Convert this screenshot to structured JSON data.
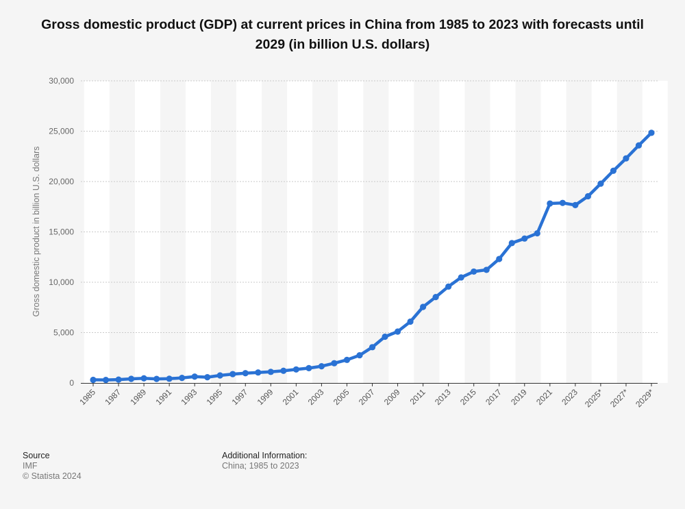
{
  "chart_data": {
    "type": "line",
    "title": "Gross domestic product (GDP) at current prices in China from 1985 to 2023 with forecasts until 2029 (in billion U.S. dollars)",
    "ylabel": "Gross domestic product in billion U.S. dollars",
    "xlabel": "",
    "ylim": [
      0,
      30000
    ],
    "yticks": [
      "0",
      "5,000",
      "10,000",
      "15,000",
      "20,000",
      "25,000",
      "30,000"
    ],
    "grid": true,
    "legend": "none",
    "categories": [
      "1985",
      "1986",
      "1987",
      "1988",
      "1989",
      "1990",
      "1991",
      "1992",
      "1993",
      "1994",
      "1995",
      "1996",
      "1997",
      "1998",
      "1999",
      "2000",
      "2001",
      "2002",
      "2003",
      "2004",
      "2005",
      "2006",
      "2007",
      "2008",
      "2009",
      "2010",
      "2011",
      "2012",
      "2013",
      "2014",
      "2015",
      "2016",
      "2017",
      "2018",
      "2019",
      "2020",
      "2021",
      "2022",
      "2023",
      "2024*",
      "2025*",
      "2026*",
      "2027*",
      "2028*",
      "2029*"
    ],
    "xtick_labels": [
      "1985",
      "1987",
      "1989",
      "1991",
      "1993",
      "1995",
      "1997",
      "1999",
      "2001",
      "2003",
      "2005",
      "2007",
      "2009",
      "2011",
      "2013",
      "2015",
      "2017",
      "2019",
      "2021",
      "2023",
      "2025*",
      "2027*",
      "2029*"
    ],
    "series": [
      {
        "values": [
          310,
          300,
          330,
          410,
          460,
          400,
          420,
          500,
          630,
          570,
          750,
          880,
          970,
          1040,
          1100,
          1210,
          1340,
          1470,
          1660,
          1960,
          2290,
          2750,
          3550,
          4590,
          5100,
          6090,
          7550,
          8530,
          9570,
          10480,
          11060,
          11230,
          12310,
          13890,
          14340,
          14860,
          17820,
          17880,
          17660,
          18540,
          19790,
          21070,
          22300,
          23590,
          24840
        ]
      }
    ]
  },
  "colors": {
    "line": "#2a72d4",
    "stripe": "#ffffff",
    "background": "#f5f5f5",
    "grid": "#c9c9c9",
    "axis": "#333333"
  },
  "footer": {
    "source_label": "Source",
    "source_value": "IMF",
    "copyright": "© Statista 2024",
    "additional_label": "Additional Information:",
    "additional_value": "China; 1985 to 2023"
  }
}
